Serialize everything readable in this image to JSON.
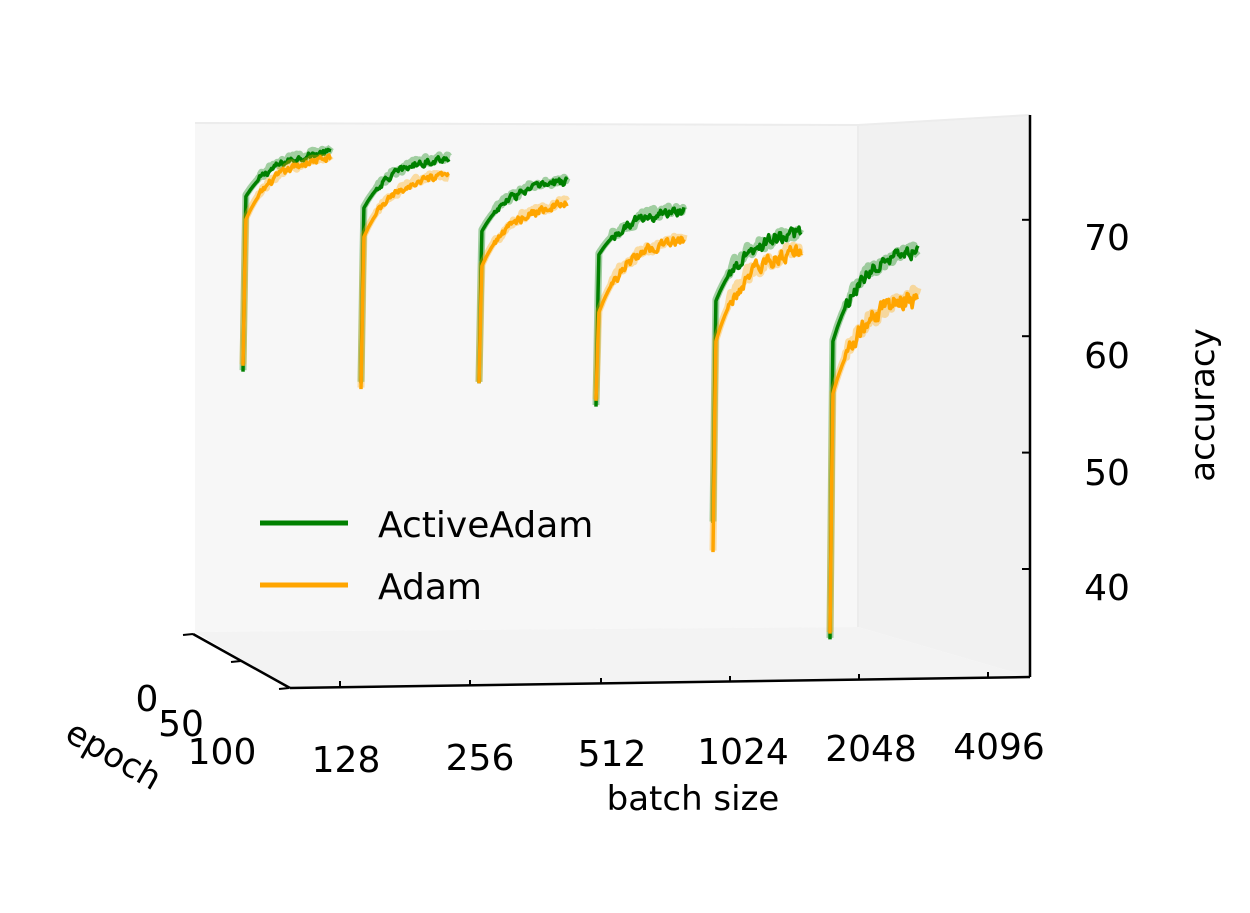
{
  "chart_data": {
    "type": "line",
    "projection": "3d",
    "title": "",
    "xlabel": "batch size",
    "ylabel": "epoch",
    "zlabel": "accuracy",
    "batch_sizes": [
      "128",
      "256",
      "512",
      "1024",
      "2048",
      "4096"
    ],
    "epoch_ticks": [
      "0",
      "50",
      "100"
    ],
    "epoch_range": [
      0,
      100
    ],
    "zlim": [
      32,
      78
    ],
    "zticks": [
      "40",
      "50",
      "60",
      "70"
    ],
    "legend": {
      "position": "lower-left",
      "entries": [
        "ActiveAdam",
        "Adam"
      ]
    },
    "colors": {
      "ActiveAdam": "#008000",
      "Adam": "#ffa500",
      "pane_back": "#f7f7f7",
      "pane_side": "#f1f1f1",
      "pane_floor": "#f3f3f3"
    },
    "series": [
      {
        "name": "ActiveAdam",
        "color": "#008000",
        "curves": [
          {
            "batch": "128",
            "start": 58.5,
            "jump": 73.5,
            "mid": 76.0,
            "end": 77.0,
            "noise": 0.5
          },
          {
            "batch": "256",
            "start": 57.5,
            "jump": 72.5,
            "mid": 75.0,
            "end": 76.5,
            "noise": 0.5
          },
          {
            "batch": "512",
            "start": 57.5,
            "jump": 70.5,
            "mid": 73.5,
            "end": 74.5,
            "noise": 0.6
          },
          {
            "batch": "1024",
            "start": 55.5,
            "jump": 68.5,
            "mid": 71.5,
            "end": 72.0,
            "noise": 0.7
          },
          {
            "batch": "2048",
            "start": 45.5,
            "jump": 64.5,
            "mid": 69.0,
            "end": 70.0,
            "noise": 0.9
          },
          {
            "batch": "4096",
            "start": 35.5,
            "jump": 61.0,
            "mid": 67.0,
            "end": 68.5,
            "noise": 0.9
          }
        ]
      },
      {
        "name": "Adam",
        "color": "#ffa500",
        "curves": [
          {
            "batch": "128",
            "start": 59.0,
            "jump": 71.5,
            "mid": 74.5,
            "end": 76.5,
            "noise": 0.5
          },
          {
            "batch": "256",
            "start": 57.0,
            "jump": 70.0,
            "mid": 73.0,
            "end": 75.0,
            "noise": 0.5
          },
          {
            "batch": "512",
            "start": 57.5,
            "jump": 67.5,
            "mid": 70.5,
            "end": 72.5,
            "noise": 0.6
          },
          {
            "batch": "1024",
            "start": 56.0,
            "jump": 63.5,
            "mid": 67.0,
            "end": 69.5,
            "noise": 0.7
          },
          {
            "batch": "2048",
            "start": 43.0,
            "jump": 61.0,
            "mid": 65.5,
            "end": 68.5,
            "noise": 1.0
          },
          {
            "batch": "4096",
            "start": 36.0,
            "jump": 56.5,
            "mid": 61.5,
            "end": 64.5,
            "noise": 1.3
          }
        ]
      }
    ]
  }
}
